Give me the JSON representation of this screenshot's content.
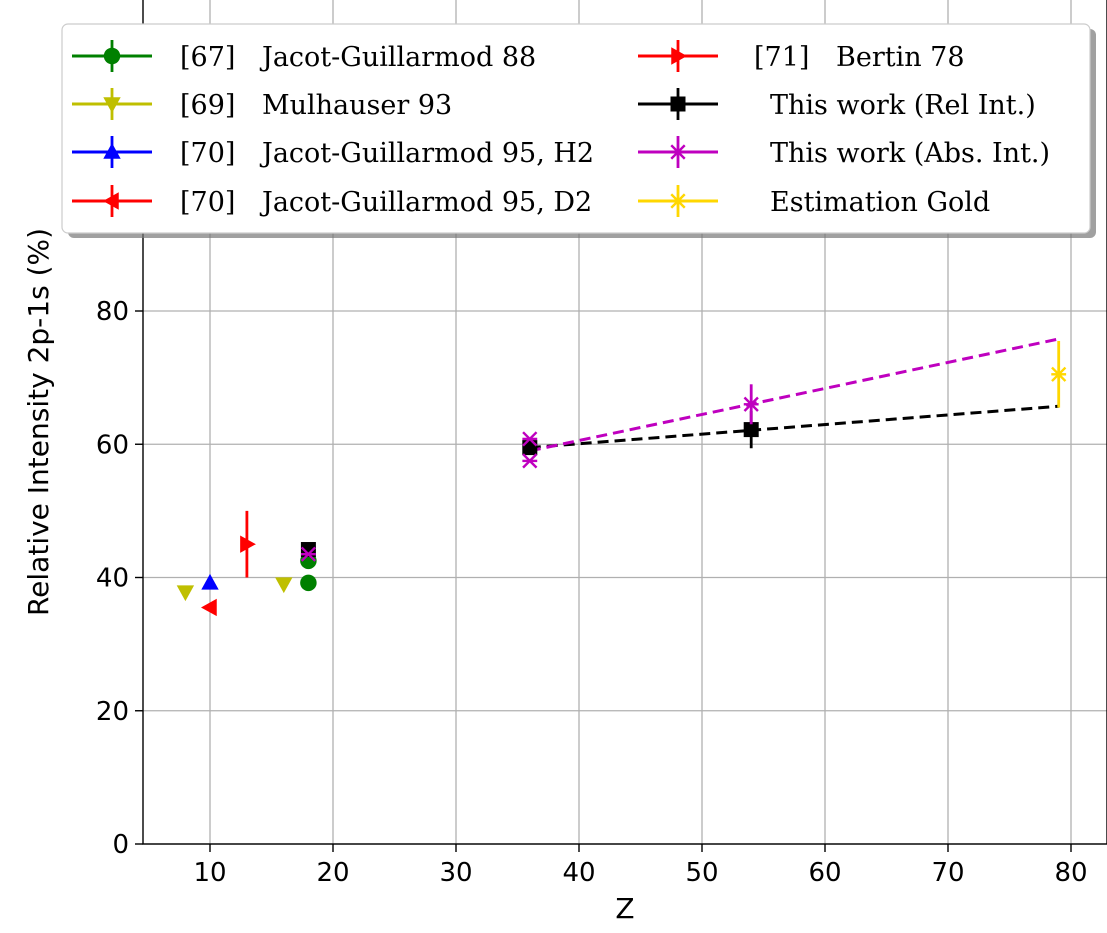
{
  "chart_data": {
    "type": "scatter",
    "title": "",
    "xlabel": "Z",
    "ylabel": "Relative Intensity 2p-1s (%)",
    "xlim": [
      5,
      82
    ],
    "ylim": [
      0,
      100
    ],
    "x_ticks": [
      "10",
      "20",
      "30",
      "40",
      "50",
      "60",
      "70",
      "80"
    ],
    "y_ticks": [
      "0",
      "20",
      "40",
      "60",
      "80"
    ],
    "grid": true,
    "legend_placement": "top",
    "series": [
      {
        "name": "[67]",
        "author": "Jacot-Guillarmod 88",
        "color": "#008000",
        "marker": "circle",
        "points": [
          {
            "x": 18,
            "y": 39.2,
            "err": 0
          },
          {
            "x": 18,
            "y": 42.5,
            "err": 0
          }
        ]
      },
      {
        "name": "[69]",
        "author": "Mulhauser 93",
        "color": "#bfbf00",
        "marker": "triangle-down",
        "points": [
          {
            "x": 8,
            "y": 37.8,
            "err": 0
          },
          {
            "x": 16,
            "y": 39.0,
            "err": 0
          }
        ]
      },
      {
        "name": "[70]",
        "author": "Jacot-Guillarmod 95, H2",
        "color": "#0000ff",
        "marker": "triangle-up",
        "points": [
          {
            "x": 10,
            "y": 39.2,
            "err": 0
          }
        ]
      },
      {
        "name": "[70]",
        "author": "Jacot-Guillarmod 95, D2",
        "color": "#ff0000",
        "marker": "triangle-left",
        "points": [
          {
            "x": 10,
            "y": 35.5,
            "err": 0
          }
        ]
      },
      {
        "name": "[71]",
        "author": "Bertin 78",
        "color": "#ff0000",
        "marker": "triangle-right",
        "points": [
          {
            "x": 13,
            "y": 45.0,
            "err": 5.0
          }
        ]
      },
      {
        "name": "This work (Rel Int.)",
        "author": "",
        "color": "#000000",
        "marker": "square",
        "points": [
          {
            "x": 18,
            "y": 44.2,
            "err": 0
          },
          {
            "x": 36,
            "y": 59.5,
            "err": 1.0
          },
          {
            "x": 54,
            "y": 62.2,
            "err": 2.8
          }
        ],
        "trend": [
          [
            36,
            59.5
          ],
          [
            79,
            65.7
          ]
        ]
      },
      {
        "name": "This work (Abs. Int.)",
        "author": "",
        "color": "#bf00bf",
        "marker": "x",
        "points": [
          {
            "x": 18,
            "y": 43.5,
            "err": 0
          },
          {
            "x": 36,
            "y": 60.8,
            "err": 0
          },
          {
            "x": 36,
            "y": 57.5,
            "err": 0
          },
          {
            "x": 54,
            "y": 66.0,
            "err": 3.0
          }
        ],
        "trend": [
          [
            36,
            59.0
          ],
          [
            79,
            75.8
          ]
        ]
      },
      {
        "name": "Estimation Gold",
        "author": "",
        "color": "#ffd700",
        "marker": "x",
        "points": [
          {
            "x": 79,
            "y": 70.5,
            "err": 5.0
          }
        ]
      }
    ]
  }
}
